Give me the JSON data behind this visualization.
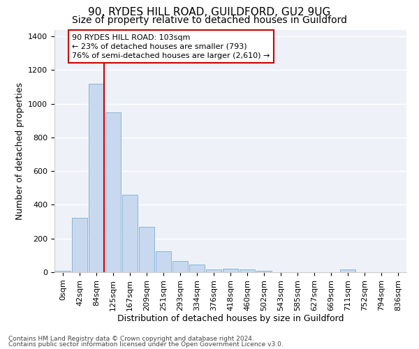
{
  "title1": "90, RYDES HILL ROAD, GUILDFORD, GU2 9UG",
  "title2": "Size of property relative to detached houses in Guildford",
  "xlabel": "Distribution of detached houses by size in Guildford",
  "ylabel": "Number of detached properties",
  "footnote1": "Contains HM Land Registry data © Crown copyright and database right 2024.",
  "footnote2": "Contains public sector information licensed under the Open Government Licence v3.0.",
  "bar_labels": [
    "0sqm",
    "42sqm",
    "84sqm",
    "125sqm",
    "167sqm",
    "209sqm",
    "251sqm",
    "293sqm",
    "334sqm",
    "376sqm",
    "418sqm",
    "460sqm",
    "502sqm",
    "543sqm",
    "585sqm",
    "627sqm",
    "669sqm",
    "711sqm",
    "752sqm",
    "794sqm",
    "836sqm"
  ],
  "bar_values": [
    10,
    325,
    1120,
    950,
    460,
    270,
    125,
    65,
    45,
    18,
    22,
    18,
    10,
    0,
    0,
    0,
    0,
    18,
    0,
    0,
    0
  ],
  "bar_color": "#c8d8ee",
  "bar_edge_color": "#7bafd4",
  "vline_color": "#cc0000",
  "annotation_text": "90 RYDES HILL ROAD: 103sqm\n← 23% of detached houses are smaller (793)\n76% of semi-detached houses are larger (2,610) →",
  "annotation_box_color": "#ffffff",
  "annotation_box_edge": "#cc0000",
  "ylim": [
    0,
    1440
  ],
  "yticks": [
    0,
    200,
    400,
    600,
    800,
    1000,
    1200,
    1400
  ],
  "bg_color": "#eef2f8",
  "grid_color": "#ffffff",
  "title1_fontsize": 11,
  "title2_fontsize": 10,
  "xlabel_fontsize": 9,
  "ylabel_fontsize": 9,
  "tick_fontsize": 8,
  "annot_fontsize": 8
}
